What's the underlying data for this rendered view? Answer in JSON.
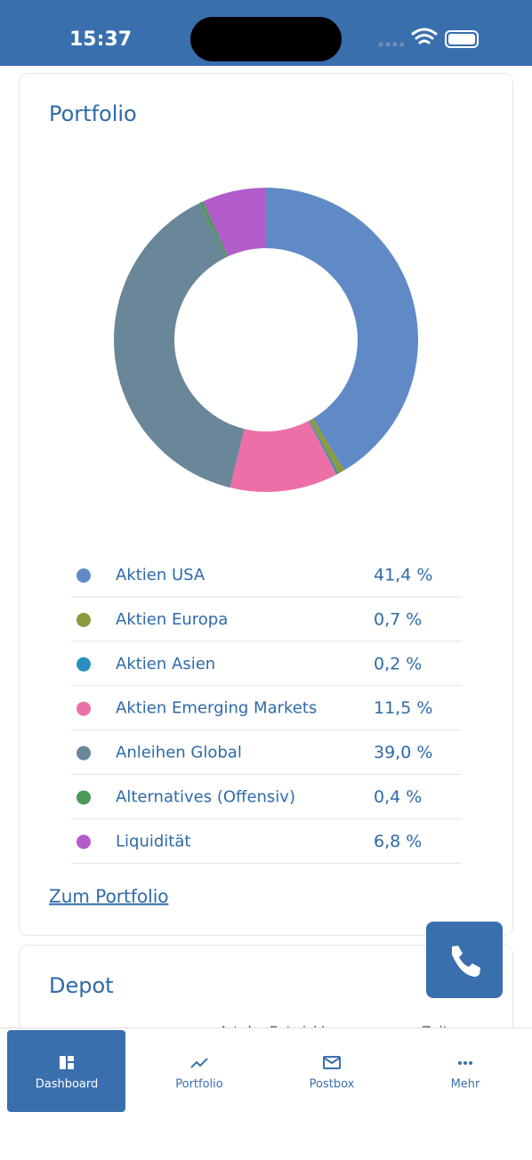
{
  "status_bar": {
    "time": "15:37"
  },
  "portfolio": {
    "title": "Portfolio",
    "chart": {
      "type": "pie",
      "categories": [
        "Aktien USA",
        "Aktien Europa",
        "Aktien Asien",
        "Aktien Emerging Markets",
        "Anleihen Global",
        "Alternatives (Offensiv)",
        "Liquidität"
      ],
      "values": [
        41.4,
        0.7,
        0.2,
        11.5,
        39.0,
        0.4,
        6.8
      ],
      "value_labels": [
        "41,4 %",
        "0,7 %",
        "0,2 %",
        "11,5 %",
        "39,0 %",
        "0,4 %",
        "6,8 %"
      ],
      "colors": [
        "#5f8ac6",
        "#8d9a3e",
        "#2a8fbf",
        "#ec6fa8",
        "#6a8699",
        "#4a9a58",
        "#b35ccc"
      ]
    },
    "link": "Zum Portfolio"
  },
  "depot": {
    "title": "Depot",
    "controls": [
      "Art der Entwicklung",
      "Zeitraum"
    ]
  },
  "nav": {
    "items": [
      "Dashboard",
      "Portfolio",
      "Postbox",
      "Mehr"
    ]
  }
}
